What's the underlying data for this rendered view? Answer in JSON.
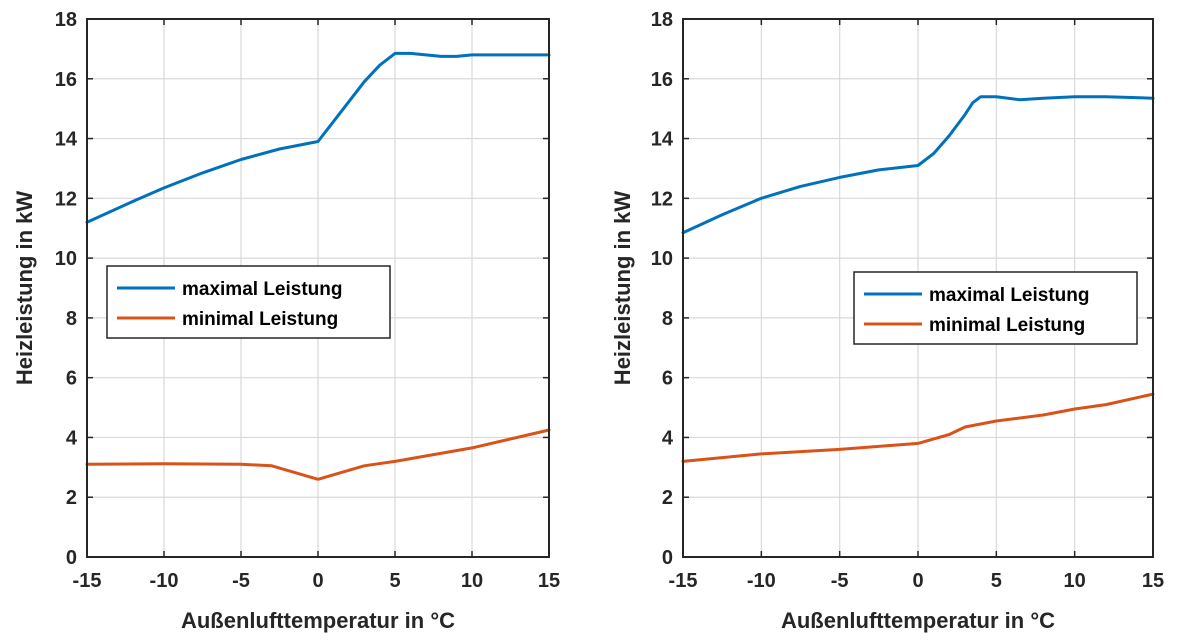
{
  "colors": {
    "blue": "#0072BD",
    "orange": "#D95319",
    "grid": "#d9d9d9",
    "axis": "#262626"
  },
  "chart_data": [
    {
      "type": "line",
      "xlabel": "Außenlufttemperatur in °C",
      "ylabel": "Heizleistung in kW",
      "xlim": [
        -15,
        15
      ],
      "ylim": [
        0,
        18
      ],
      "xticks": [
        -15,
        -10,
        -5,
        0,
        5,
        10,
        15
      ],
      "yticks": [
        0,
        2,
        4,
        6,
        8,
        10,
        12,
        14,
        16,
        18
      ],
      "xtick_labels": [
        "-15",
        "-10",
        "-5",
        "0",
        "5",
        "10",
        "15"
      ],
      "ytick_labels": [
        "0",
        "2",
        "4",
        "6",
        "8",
        "10",
        "12",
        "14",
        "16",
        "18"
      ],
      "grid": true,
      "legend_position": "middle-left",
      "series": [
        {
          "name": "maximal Leistung",
          "color": "#0072BD",
          "x": [
            -15,
            -12,
            -10,
            -7.5,
            -5,
            -2.5,
            0,
            1.5,
            3,
            4,
            5,
            6,
            7,
            8,
            9,
            10,
            12,
            15
          ],
          "y": [
            11.2,
            11.9,
            12.35,
            12.85,
            13.3,
            13.65,
            13.9,
            14.9,
            15.9,
            16.45,
            16.85,
            16.85,
            16.8,
            16.75,
            16.75,
            16.8,
            16.8,
            16.8
          ]
        },
        {
          "name": "minimal Leistung",
          "color": "#D95319",
          "x": [
            -15,
            -10,
            -5,
            -3,
            -2,
            -1,
            0,
            1,
            3,
            5,
            10,
            15
          ],
          "y": [
            3.1,
            3.12,
            3.1,
            3.05,
            2.9,
            2.75,
            2.6,
            2.75,
            3.05,
            3.2,
            3.65,
            4.25
          ]
        }
      ]
    },
    {
      "type": "line",
      "xlabel": "Außenlufttemperatur in °C",
      "ylabel": "Heizleistung in kW",
      "xlim": [
        -15,
        15
      ],
      "ylim": [
        0,
        18
      ],
      "xticks": [
        -15,
        -10,
        -5,
        0,
        5,
        10,
        15
      ],
      "yticks": [
        0,
        2,
        4,
        6,
        8,
        10,
        12,
        14,
        16,
        18
      ],
      "xtick_labels": [
        "-15",
        "-10",
        "-5",
        "0",
        "5",
        "10",
        "15"
      ],
      "ytick_labels": [
        "0",
        "2",
        "4",
        "6",
        "8",
        "10",
        "12",
        "14",
        "16",
        "18"
      ],
      "grid": true,
      "legend_position": "middle-right",
      "series": [
        {
          "name": "maximal Leistung",
          "color": "#0072BD",
          "x": [
            -15,
            -12.5,
            -10,
            -7.5,
            -5,
            -2.5,
            0,
            1,
            2,
            3,
            3.5,
            4,
            5,
            6.5,
            8,
            10,
            12,
            15
          ],
          "y": [
            10.85,
            11.45,
            12.0,
            12.4,
            12.7,
            12.95,
            13.1,
            13.5,
            14.1,
            14.8,
            15.2,
            15.4,
            15.4,
            15.3,
            15.35,
            15.4,
            15.4,
            15.35
          ]
        },
        {
          "name": "minimal Leistung",
          "color": "#D95319",
          "x": [
            -15,
            -10,
            -5,
            0,
            1,
            2,
            3,
            5,
            8,
            10,
            12,
            15
          ],
          "y": [
            3.2,
            3.45,
            3.6,
            3.8,
            3.95,
            4.1,
            4.35,
            4.55,
            4.75,
            4.95,
            5.1,
            5.45
          ]
        }
      ]
    }
  ]
}
